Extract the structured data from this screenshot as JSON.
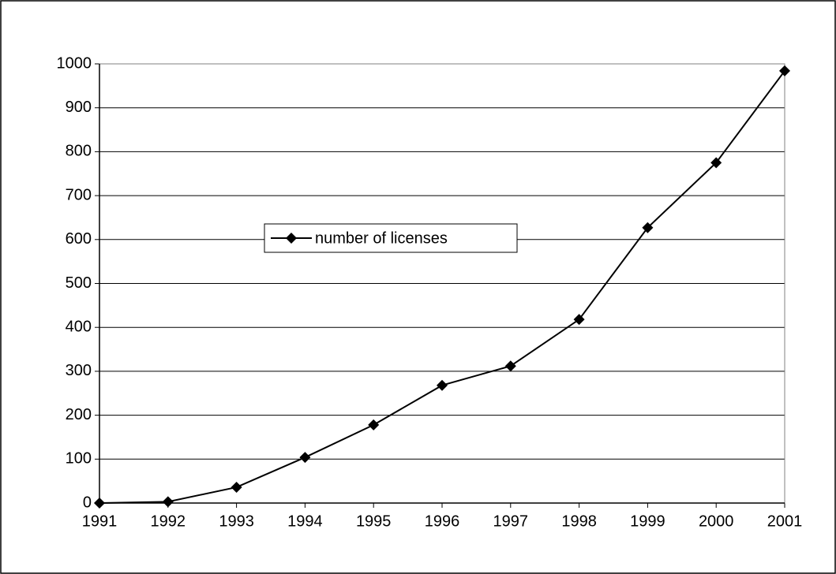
{
  "chart_data": {
    "type": "line",
    "x": [
      1991,
      1992,
      1993,
      1994,
      1995,
      1996,
      1997,
      1998,
      1999,
      2000,
      2001
    ],
    "series": [
      {
        "name": "number of licenses",
        "color": "#000000",
        "values": [
          0,
          3,
          36,
          104,
          178,
          268,
          312,
          418,
          627,
          775,
          984
        ]
      }
    ],
    "xlim": [
      1991,
      2001
    ],
    "xticks": [
      1991,
      1992,
      1993,
      1994,
      1995,
      1996,
      1997,
      1998,
      1999,
      2000,
      2001
    ],
    "ylim": [
      0,
      1000
    ],
    "yticks": [
      0,
      100,
      200,
      300,
      400,
      500,
      600,
      700,
      800,
      900,
      1000
    ],
    "grid": true,
    "legend": "center",
    "marker": "diamond"
  }
}
